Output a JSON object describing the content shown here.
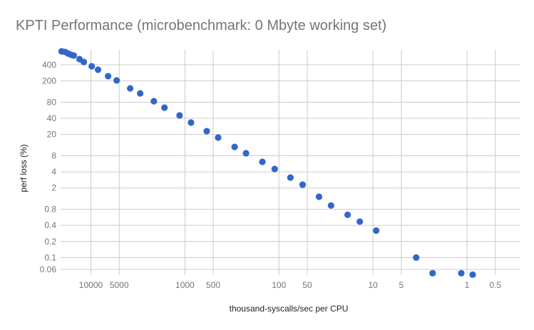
{
  "chart_data": {
    "type": "scatter",
    "title": "KPTI Performance (microbenchmark: 0 Mbyte working set)",
    "xlabel": "thousand-syscalls/sec per CPU",
    "ylabel": "perf loss (%)",
    "x_scale": "log",
    "x_reversed": true,
    "y_scale": "log",
    "xlim": [
      21000,
      0.27
    ],
    "ylim": [
      0.047,
      760
    ],
    "grid": true,
    "legend": "none",
    "point_color": "#3366cc",
    "x_ticks": [
      10000,
      5000,
      1000,
      500,
      100,
      50,
      10,
      5,
      1,
      0.5
    ],
    "x_tick_labels": [
      "10000",
      "5000",
      "1000",
      "500",
      "100",
      "50",
      "10",
      "5",
      "1",
      "0.5"
    ],
    "y_ticks": [
      400,
      200,
      80,
      40,
      20,
      8,
      4,
      2,
      0.8,
      0.4,
      0.2,
      0.1,
      0.06
    ],
    "y_tick_labels": [
      "400",
      "200",
      "80",
      "40",
      "20",
      "8",
      "4",
      "2",
      "0.8",
      "0.4",
      "0.2",
      "0.1",
      "0.06"
    ],
    "points": [
      [
        20500,
        716
      ],
      [
        18800,
        695
      ],
      [
        17500,
        653
      ],
      [
        16300,
        615
      ],
      [
        15200,
        596
      ],
      [
        13200,
        511
      ],
      [
        11900,
        452
      ],
      [
        9800,
        376
      ],
      [
        8400,
        323
      ],
      [
        6560,
        245
      ],
      [
        5320,
        204
      ],
      [
        3820,
        145
      ],
      [
        2990,
        117
      ],
      [
        2140,
        83.6
      ],
      [
        1650,
        63.4
      ],
      [
        1140,
        45.2
      ],
      [
        861,
        33.3
      ],
      [
        586,
        23.0
      ],
      [
        443,
        17.5
      ],
      [
        296,
        11.7
      ],
      [
        224,
        8.9
      ],
      [
        150,
        6.15
      ],
      [
        111,
        4.52
      ],
      [
        75.5,
        3.13
      ],
      [
        56,
        2.3
      ],
      [
        37.5,
        1.37
      ],
      [
        27.9,
        0.94
      ],
      [
        18.6,
        0.63
      ],
      [
        13.8,
        0.47
      ],
      [
        9.24,
        0.32
      ],
      [
        3.47,
        0.1
      ],
      [
        2.32,
        0.051
      ],
      [
        1.15,
        0.051
      ],
      [
        0.87,
        0.048
      ]
    ]
  }
}
